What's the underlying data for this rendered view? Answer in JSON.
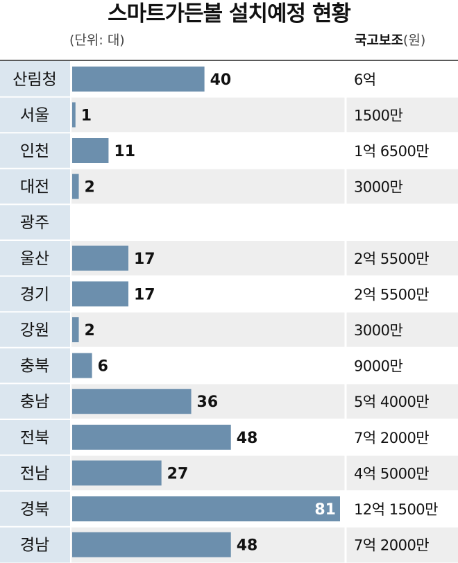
{
  "title": "스마트가든볼 설치예정 현황",
  "unit_note": "(단위: 대)",
  "subsidy_header": {
    "bold": "국고보조",
    "unit": "(원)"
  },
  "colors": {
    "bar": "#6c8fad",
    "label_column_bg": "#dbe6ef",
    "row_stripe": "#eeeeee",
    "separator": "#ffffff"
  },
  "chart_data": {
    "type": "bar",
    "orientation": "horizontal",
    "title": "스마트가든볼 설치예정 현황",
    "unit": "대",
    "categories": [
      "산림청",
      "서울",
      "인천",
      "대전",
      "광주",
      "울산",
      "경기",
      "강원",
      "충북",
      "충남",
      "전북",
      "전남",
      "경북",
      "경남"
    ],
    "values": [
      40,
      1,
      11,
      2,
      null,
      17,
      17,
      2,
      6,
      36,
      48,
      27,
      81,
      48
    ],
    "value_labels": [
      "40",
      "1",
      "11",
      "2",
      "",
      "17",
      "17",
      "2",
      "6",
      "36",
      "48",
      "27",
      "81",
      "48"
    ],
    "subsidy_labels": [
      "6억",
      "1500만",
      "1억 6500만",
      "3000만",
      "",
      "2억 5500만",
      "2억 5500만",
      "3000만",
      "9000만",
      "5억 4000만",
      "7억 2000만",
      "4억 5000만",
      "12억 1500만",
      "7억 2000만"
    ],
    "xlim": [
      0,
      81
    ]
  }
}
